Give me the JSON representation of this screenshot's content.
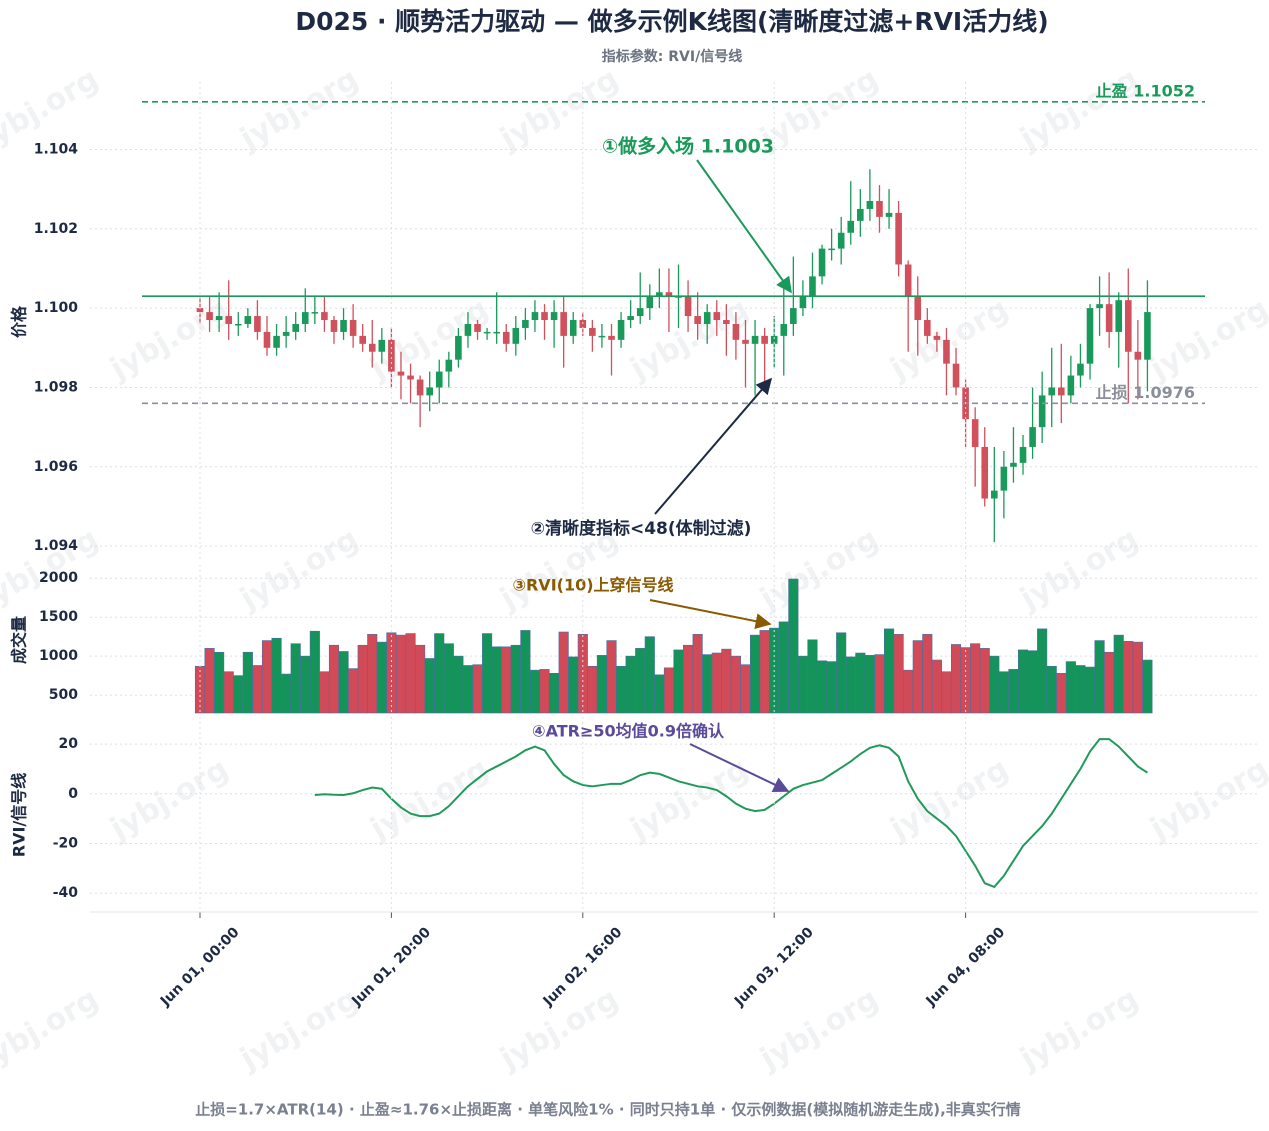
{
  "title": "D025 · 顺势活力驱动 — 做多示例K线图(清晰度过滤+RVI活力线)",
  "subtitle": "指标参数: RVI/信号线",
  "footer": "止损=1.7×ATR(14) · 止盈≈1.76×止损距离 · 单笔风险1% · 同时只持1单 · 仅示例数据(模拟随机游走生成),非真实行情",
  "watermark": "jybj.org",
  "chart_data": [
    {
      "type": "candlestick",
      "ylabel": "价格",
      "up_color": "#1a9a5a",
      "down_color": "#d0505c",
      "grid": true,
      "ylim": [
        1.0936,
        1.1057
      ],
      "yticks": [
        1.094,
        1.096,
        1.098,
        {
          "value": 1.1,
          "label": "1.100"
        },
        1.102,
        1.104
      ],
      "open": [
        1.1,
        1.0999,
        1.0997,
        1.0998,
        1.0996,
        1.0996,
        1.0998,
        1.0994,
        1.099,
        1.0993,
        1.0994,
        1.0996,
        1.0999,
        1.0999,
        1.0997,
        1.0994,
        1.0997,
        1.0993,
        1.0991,
        1.0989,
        1.0992,
        1.0984,
        1.0983,
        1.0982,
        1.0978,
        1.098,
        1.0984,
        1.0987,
        1.0993,
        1.0996,
        1.0994,
        1.0994,
        1.0994,
        1.0991,
        1.0995,
        1.0997,
        1.0999,
        1.0997,
        1.0999,
        1.0993,
        1.0997,
        1.0995,
        1.0993,
        1.0993,
        1.0992,
        1.0997,
        1.0998,
        1.1,
        1.1003,
        1.1004,
        1.1003,
        1.1003,
        1.0998,
        1.0996,
        1.0999,
        1.0997,
        1.0996,
        1.0992,
        1.0991,
        1.0993,
        1.0991,
        1.0993,
        1.0996,
        1.1,
        1.1003,
        1.1008,
        1.1015,
        1.1015,
        1.1019,
        1.1022,
        1.1025,
        1.1027,
        1.1023,
        1.1024,
        1.1011,
        1.1003,
        1.0997,
        1.0993,
        1.0992,
        1.0986,
        1.098,
        1.0972,
        1.0965,
        1.0952,
        1.0954,
        1.096,
        1.0961,
        1.0965,
        1.097,
        1.0978,
        1.098,
        1.0978,
        1.0983,
        1.0986,
        1.1,
        1.1001,
        1.0994,
        1.1002,
        1.0989,
        1.0987
      ],
      "high": [
        1.1003,
        1.1003,
        1.1004,
        1.1007,
        1.0999,
        1.1,
        1.1002,
        1.0998,
        1.0996,
        1.0998,
        1.0999,
        1.1005,
        1.1003,
        1.1003,
        1.0998,
        1.1,
        1.1001,
        1.0996,
        1.0997,
        1.0995,
        1.0995,
        1.0989,
        1.0986,
        1.0983,
        1.0984,
        1.0987,
        1.0989,
        1.0995,
        1.0999,
        1.0997,
        1.0995,
        1.1004,
        1.0996,
        1.0998,
        1.1,
        1.1002,
        1.1001,
        1.1002,
        1.1003,
        1.0999,
        1.0999,
        1.0997,
        1.0996,
        1.0996,
        1.0999,
        1.1002,
        1.1009,
        1.1006,
        1.101,
        1.101,
        1.1011,
        1.1007,
        1.1004,
        1.1001,
        1.1002,
        1.1001,
        1.0999,
        1.0997,
        1.0997,
        1.0995,
        1.0998,
        1.1005,
        1.1013,
        1.1007,
        1.1014,
        1.1016,
        1.102,
        1.1023,
        1.1032,
        1.103,
        1.1035,
        1.1031,
        1.103,
        1.1027,
        1.1012,
        1.1008,
        1.1,
        1.0994,
        1.0995,
        1.099,
        1.0982,
        1.0975,
        1.097,
        1.0965,
        1.0964,
        1.097,
        1.0968,
        1.098,
        1.0984,
        1.099,
        1.0991,
        1.0988,
        1.0991,
        1.1001,
        1.1008,
        1.1009,
        1.1004,
        1.101,
        1.0997,
        1.1007
      ],
      "low": [
        1.0996,
        1.0994,
        1.0994,
        1.0992,
        1.0993,
        1.0995,
        1.0992,
        1.0988,
        1.0988,
        1.099,
        1.0992,
        1.0994,
        1.0996,
        1.0994,
        1.0991,
        1.0992,
        1.099,
        1.0989,
        1.0985,
        1.0986,
        1.098,
        1.0977,
        1.0976,
        1.097,
        1.0974,
        1.0976,
        1.098,
        1.0985,
        1.099,
        1.0992,
        1.0992,
        1.0991,
        1.0989,
        1.0988,
        1.0992,
        1.0994,
        1.0992,
        1.099,
        1.0985,
        1.0991,
        1.0993,
        1.0989,
        1.099,
        1.0983,
        1.099,
        1.0995,
        1.0996,
        1.0997,
        1.1,
        1.0994,
        1.0995,
        1.0994,
        1.0992,
        1.0991,
        1.0993,
        1.0988,
        1.0987,
        1.098,
        1.0978,
        1.0981,
        1.0985,
        1.0983,
        1.0993,
        1.0998,
        1.1,
        1.1006,
        1.1012,
        1.1011,
        1.1016,
        1.1018,
        1.1022,
        1.1019,
        1.102,
        1.1008,
        1.0989,
        1.0988,
        1.0991,
        1.0989,
        1.0978,
        1.0978,
        1.0965,
        1.0955,
        1.095,
        1.0941,
        1.0947,
        1.0956,
        1.0958,
        1.0962,
        1.0966,
        1.097,
        1.0971,
        1.0976,
        1.098,
        1.0982,
        1.0993,
        1.099,
        1.0985,
        1.0976,
        1.0977,
        1.0979
      ],
      "close": [
        1.0999,
        1.0997,
        1.0998,
        1.0996,
        1.0996,
        1.0998,
        1.0994,
        1.099,
        1.0993,
        1.0994,
        1.0996,
        1.0999,
        1.0999,
        1.0997,
        1.0994,
        1.0997,
        1.0993,
        1.0991,
        1.0989,
        1.0992,
        1.0984,
        1.0983,
        1.0982,
        1.0978,
        1.098,
        1.0984,
        1.0987,
        1.0993,
        1.0996,
        1.0994,
        1.0994,
        1.0994,
        1.0991,
        1.0995,
        1.0997,
        1.0999,
        1.0997,
        1.0999,
        1.0993,
        1.0997,
        1.0995,
        1.0993,
        1.0993,
        1.0992,
        1.0997,
        1.0998,
        1.1,
        1.1003,
        1.1004,
        1.1003,
        1.1003,
        1.0998,
        1.0996,
        1.0999,
        1.0997,
        1.0996,
        1.0992,
        1.0991,
        1.0993,
        1.0991,
        1.0993,
        1.0996,
        1.1,
        1.1003,
        1.1008,
        1.1015,
        1.1015,
        1.1019,
        1.1022,
        1.1025,
        1.1027,
        1.1023,
        1.1024,
        1.1011,
        1.1003,
        1.0997,
        1.0993,
        1.0992,
        1.0986,
        1.098,
        1.0972,
        1.0965,
        1.0952,
        1.0954,
        1.096,
        1.0961,
        1.0965,
        1.097,
        1.0978,
        1.098,
        1.0978,
        1.0983,
        1.0986,
        1.1,
        1.1001,
        1.0994,
        1.1002,
        1.0989,
        1.0987,
        1.0999
      ],
      "levels": [
        {
          "label": "止盈 1.1052",
          "value": 1.1052,
          "color": "#1a9a5a",
          "dashed": true
        },
        {
          "value": 1.1003,
          "color": "#1a9a5a",
          "dashed": false
        },
        {
          "label": "止损 1.0976",
          "value": 1.0976,
          "color": "#8a8f99",
          "dashed": true
        }
      ],
      "annotations": [
        {
          "text": "①做多入场 1.1003",
          "color": "#1a9a5a"
        },
        {
          "text": "②清晰度指标<48(体制过滤)",
          "color": "#1e2a44"
        }
      ]
    },
    {
      "type": "bar",
      "ylabel": "成交量",
      "grid": true,
      "ylim": [
        270,
        2170
      ],
      "yticks": [
        500,
        1000,
        1500,
        2000
      ],
      "values": [
        870,
        1100,
        1050,
        800,
        750,
        1050,
        880,
        1200,
        1230,
        770,
        1160,
        1000,
        1320,
        800,
        1140,
        1060,
        840,
        1140,
        1280,
        1180,
        1300,
        1270,
        1290,
        1140,
        970,
        1290,
        1160,
        1000,
        880,
        890,
        1290,
        1120,
        1120,
        1140,
        1330,
        820,
        830,
        780,
        1310,
        990,
        1280,
        870,
        1010,
        1200,
        870,
        1000,
        1100,
        1250,
        760,
        850,
        1080,
        1140,
        1280,
        1020,
        1040,
        1090,
        1000,
        890,
        1270,
        1330,
        1360,
        1440,
        1990,
        1000,
        1210,
        940,
        930,
        1300,
        990,
        1040,
        1010,
        1020,
        1350,
        1280,
        820,
        1200,
        1280,
        950,
        800,
        1150,
        1110,
        1160,
        1100,
        1000,
        800,
        830,
        1080,
        1070,
        1350,
        870,
        780,
        930,
        880,
        860,
        1200,
        1050,
        1270,
        1190,
        1180,
        950
      ],
      "annotations": [
        {
          "text": "③RVI(10)上穿信号线",
          "color": "#8a5a00"
        }
      ]
    },
    {
      "type": "line",
      "ylabel": "RVI/信号线",
      "grid": true,
      "color": "#1f9a5a",
      "ylim": [
        -47.6,
        30.9
      ],
      "yticks": [
        -40,
        -20,
        0,
        20
      ],
      "categories": [
        "Jun 01, 00:00",
        null,
        null,
        null,
        null,
        null,
        null,
        null,
        null,
        null,
        null,
        null,
        null,
        null,
        null,
        null,
        null,
        null,
        null,
        null,
        "Jun 01, 20:00",
        null,
        null,
        null,
        null,
        null,
        null,
        null,
        null,
        null,
        null,
        null,
        null,
        null,
        null,
        null,
        null,
        null,
        null,
        null,
        "Jun 02, 16:00",
        null,
        null,
        null,
        null,
        null,
        null,
        null,
        null,
        null,
        null,
        null,
        null,
        null,
        null,
        null,
        null,
        null,
        null,
        null,
        "Jun 03, 12:00",
        null,
        null,
        null,
        null,
        null,
        null,
        null,
        null,
        null,
        null,
        null,
        null,
        null,
        null,
        null,
        null,
        null,
        null,
        null,
        "Jun 04, 08:00",
        null,
        null,
        null,
        null,
        null,
        null,
        null,
        null,
        null,
        null,
        null,
        null,
        null,
        null,
        null,
        null,
        null,
        null,
        null
      ],
      "values": [
        null,
        null,
        null,
        null,
        null,
        null,
        null,
        null,
        null,
        null,
        null,
        null,
        -0.5,
        -0.2,
        -0.4,
        -0.5,
        0.2,
        1.5,
        2.5,
        2,
        -2,
        -5.5,
        -8,
        -9,
        -9,
        -8,
        -5,
        -1,
        3,
        6,
        9,
        11,
        13,
        15,
        17.5,
        19,
        17.5,
        12,
        7.5,
        5,
        3.5,
        3,
        3.5,
        4,
        4,
        5.5,
        7.5,
        8.5,
        8,
        6.5,
        5,
        4,
        3,
        2.5,
        1.5,
        -1,
        -4,
        -6,
        -7,
        -6.5,
        -4,
        -1,
        2,
        3.5,
        4.5,
        5.5,
        8,
        10.5,
        13,
        16,
        18.5,
        19.5,
        18.5,
        15,
        5,
        -2,
        -7,
        -10,
        -13,
        -17,
        -23,
        -29,
        -36,
        -37.5,
        -33,
        -27,
        -21,
        -17,
        -13,
        -8,
        -2,
        4,
        10,
        17,
        22,
        22,
        19,
        15,
        11,
        8.5
      ],
      "annotations": [
        {
          "text": "④ATR≥50均值0.9倍确认",
          "color": "#5b4a9a"
        }
      ]
    }
  ]
}
